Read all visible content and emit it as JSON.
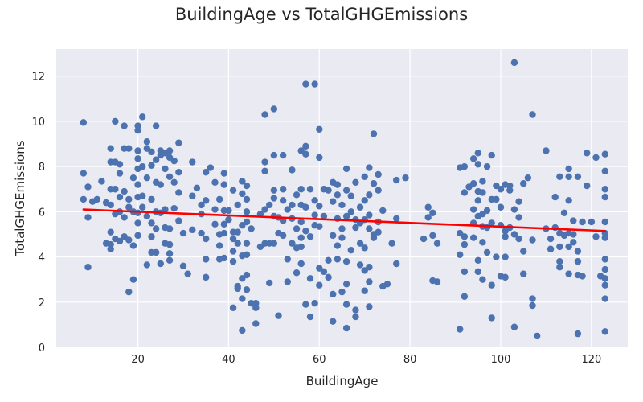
{
  "chart_data": {
    "type": "scatter",
    "title": "BuildingAge vs TotalGHGEmissions",
    "xlabel": "BuildingAge",
    "ylabel": "TotalGHGEmissions",
    "xlim": [
      2,
      128
    ],
    "ylim": [
      0,
      13.2
    ],
    "xticks": [
      20,
      40,
      60,
      80,
      100,
      120
    ],
    "yticks": [
      0,
      2,
      4,
      6,
      8,
      10,
      12
    ],
    "grid": true,
    "background_color": "#eaeaf2",
    "point_color": "#4c72b0",
    "trend_color": "#ff0000",
    "trend_line": {
      "x": [
        8,
        123
      ],
      "y": [
        6.1,
        5.15
      ]
    },
    "points": [
      [
        8,
        9.95
      ],
      [
        8,
        7.7
      ],
      [
        8,
        6.55
      ],
      [
        9,
        7.1
      ],
      [
        9,
        5.75
      ],
      [
        9,
        3.55
      ],
      [
        10,
        6.45
      ],
      [
        11,
        6.55
      ],
      [
        12,
        7.35
      ],
      [
        13,
        6.4
      ],
      [
        13,
        4.6
      ],
      [
        14,
        8.8
      ],
      [
        14,
        8.2
      ],
      [
        14,
        7.0
      ],
      [
        14,
        6.3
      ],
      [
        14,
        5.1
      ],
      [
        14,
        4.55
      ],
      [
        14,
        4.35
      ],
      [
        15,
        10.0
      ],
      [
        15,
        8.2
      ],
      [
        15,
        7.0
      ],
      [
        15,
        5.9
      ],
      [
        15,
        4.8
      ],
      [
        16,
        8.1
      ],
      [
        16,
        7.7
      ],
      [
        16,
        6.65
      ],
      [
        16,
        6.0
      ],
      [
        16,
        4.7
      ],
      [
        17,
        9.8
      ],
      [
        17,
        8.8
      ],
      [
        17,
        6.9
      ],
      [
        17,
        5.75
      ],
      [
        17,
        4.9
      ],
      [
        18,
        8.8
      ],
      [
        18,
        6.55
      ],
      [
        18,
        6.2
      ],
      [
        18,
        4.75
      ],
      [
        18,
        2.45
      ],
      [
        19,
        7.5
      ],
      [
        19,
        6.0
      ],
      [
        19,
        4.5
      ],
      [
        19,
        3.0
      ],
      [
        20,
        9.8
      ],
      [
        20,
        9.6
      ],
      [
        20,
        8.7
      ],
      [
        20,
        8.35
      ],
      [
        20,
        7.9
      ],
      [
        20,
        7.2
      ],
      [
        20,
        6.65
      ],
      [
        20,
        5.95
      ],
      [
        20,
        5.5
      ],
      [
        20,
        4.95
      ],
      [
        21,
        10.2
      ],
      [
        21,
        8.0
      ],
      [
        21,
        6.7
      ],
      [
        21,
        6.2
      ],
      [
        22,
        9.1
      ],
      [
        22,
        8.8
      ],
      [
        22,
        7.5
      ],
      [
        22,
        5.8
      ],
      [
        22,
        3.65
      ],
      [
        23,
        8.65
      ],
      [
        23,
        8.05
      ],
      [
        23,
        6.55
      ],
      [
        23,
        5.5
      ],
      [
        23,
        4.9
      ],
      [
        23,
        4.2
      ],
      [
        24,
        9.8
      ],
      [
        24,
        8.3
      ],
      [
        24,
        7.3
      ],
      [
        24,
        6.0
      ],
      [
        24,
        5.25
      ],
      [
        24,
        4.2
      ],
      [
        25,
        8.7
      ],
      [
        25,
        8.5
      ],
      [
        25,
        7.2
      ],
      [
        25,
        5.95
      ],
      [
        25,
        3.7
      ],
      [
        26,
        8.6
      ],
      [
        26,
        7.9
      ],
      [
        26,
        6.1
      ],
      [
        26,
        5.3
      ],
      [
        26,
        4.6
      ],
      [
        27,
        8.7
      ],
      [
        27,
        8.4
      ],
      [
        27,
        7.55
      ],
      [
        27,
        5.25
      ],
      [
        27,
        4.55
      ],
      [
        27,
        4.15
      ],
      [
        27,
        3.85
      ],
      [
        28,
        8.25
      ],
      [
        28,
        7.3
      ],
      [
        28,
        6.15
      ],
      [
        29,
        9.05
      ],
      [
        29,
        7.75
      ],
      [
        29,
        6.85
      ],
      [
        29,
        5.6
      ],
      [
        30,
        5.05
      ],
      [
        30,
        3.6
      ],
      [
        31,
        3.25
      ],
      [
        32,
        8.2
      ],
      [
        32,
        6.7
      ],
      [
        32,
        5.2
      ],
      [
        33,
        7.05
      ],
      [
        34,
        6.3
      ],
      [
        34,
        5.9
      ],
      [
        34,
        5.05
      ],
      [
        35,
        7.75
      ],
      [
        35,
        6.5
      ],
      [
        35,
        4.8
      ],
      [
        35,
        3.9
      ],
      [
        35,
        3.1
      ],
      [
        36,
        7.95
      ],
      [
        37,
        7.3
      ],
      [
        37,
        6.1
      ],
      [
        37,
        5.45
      ],
      [
        38,
        6.55
      ],
      [
        38,
        5.0
      ],
      [
        38,
        4.5
      ],
      [
        38,
        3.9
      ],
      [
        39,
        7.7
      ],
      [
        39,
        7.2
      ],
      [
        39,
        6.05
      ],
      [
        39,
        5.45
      ],
      [
        39,
        5.05
      ],
      [
        39,
        3.95
      ],
      [
        40,
        6.05
      ],
      [
        40,
        5.65
      ],
      [
        41,
        6.95
      ],
      [
        41,
        5.1
      ],
      [
        41,
        4.8
      ],
      [
        41,
        4.25
      ],
      [
        41,
        3.8
      ],
      [
        41,
        1.75
      ],
      [
        42,
        6.3
      ],
      [
        42,
        5.1
      ],
      [
        42,
        4.6
      ],
      [
        42,
        2.7
      ],
      [
        42,
        2.6
      ],
      [
        43,
        7.35
      ],
      [
        43,
        6.8
      ],
      [
        43,
        5.4
      ],
      [
        43,
        4.05
      ],
      [
        43,
        3.05
      ],
      [
        43,
        2.15
      ],
      [
        43,
        0.75
      ],
      [
        44,
        7.15
      ],
      [
        44,
        6.55
      ],
      [
        44,
        6.0
      ],
      [
        44,
        5.55
      ],
      [
        44,
        4.6
      ],
      [
        44,
        4.1
      ],
      [
        44,
        3.2
      ],
      [
        44,
        2.55
      ],
      [
        45,
        5.25
      ],
      [
        45,
        1.95
      ],
      [
        46,
        1.05
      ],
      [
        46,
        1.75
      ],
      [
        46,
        1.95
      ],
      [
        47,
        5.9
      ],
      [
        47,
        4.45
      ],
      [
        48,
        10.3
      ],
      [
        48,
        8.2
      ],
      [
        48,
        7.8
      ],
      [
        48,
        6.1
      ],
      [
        48,
        4.6
      ],
      [
        49,
        6.3
      ],
      [
        49,
        4.6
      ],
      [
        49,
        2.85
      ],
      [
        50,
        10.55
      ],
      [
        50,
        8.5
      ],
      [
        50,
        6.95
      ],
      [
        50,
        6.6
      ],
      [
        50,
        5.8
      ],
      [
        50,
        4.6
      ],
      [
        51,
        5.75
      ],
      [
        51,
        5.05
      ],
      [
        51,
        1.4
      ],
      [
        52,
        8.5
      ],
      [
        52,
        7.0
      ],
      [
        52,
        6.5
      ],
      [
        52,
        5.6
      ],
      [
        52,
        4.95
      ],
      [
        53,
        6.1
      ],
      [
        53,
        3.9
      ],
      [
        53,
        2.9
      ],
      [
        54,
        7.85
      ],
      [
        54,
        6.3
      ],
      [
        54,
        5.7
      ],
      [
        54,
        4.6
      ],
      [
        55,
        6.75
      ],
      [
        55,
        5.25
      ],
      [
        55,
        4.4
      ],
      [
        55,
        3.3
      ],
      [
        56,
        8.7
      ],
      [
        56,
        7.0
      ],
      [
        56,
        6.3
      ],
      [
        56,
        5.55
      ],
      [
        56,
        4.85
      ],
      [
        56,
        4.45
      ],
      [
        56,
        3.7
      ],
      [
        57,
        11.65
      ],
      [
        57,
        8.9
      ],
      [
        57,
        8.55
      ],
      [
        57,
        6.2
      ],
      [
        57,
        5.15
      ],
      [
        57,
        1.9
      ],
      [
        58,
        7.0
      ],
      [
        58,
        4.9
      ],
      [
        58,
        3.05
      ],
      [
        58,
        1.35
      ],
      [
        59,
        11.65
      ],
      [
        59,
        6.5
      ],
      [
        59,
        5.85
      ],
      [
        59,
        5.4
      ],
      [
        59,
        1.95
      ],
      [
        60,
        9.65
      ],
      [
        60,
        8.4
      ],
      [
        60,
        6.25
      ],
      [
        60,
        5.35
      ],
      [
        60,
        3.5
      ],
      [
        60,
        2.75
      ],
      [
        61,
        7.0
      ],
      [
        61,
        5.8
      ],
      [
        61,
        3.35
      ],
      [
        62,
        6.95
      ],
      [
        62,
        3.85
      ],
      [
        62,
        3.1
      ],
      [
        63,
        7.3
      ],
      [
        63,
        6.45
      ],
      [
        63,
        4.95
      ],
      [
        63,
        2.35
      ],
      [
        63,
        1.15
      ],
      [
        64,
        7.2
      ],
      [
        64,
        6.75
      ],
      [
        64,
        5.7
      ],
      [
        64,
        4.5
      ],
      [
        64,
        3.9
      ],
      [
        65,
        6.3
      ],
      [
        65,
        5.25
      ],
      [
        65,
        4.85
      ],
      [
        65,
        2.45
      ],
      [
        66,
        7.9
      ],
      [
        66,
        6.95
      ],
      [
        66,
        5.8
      ],
      [
        66,
        3.8
      ],
      [
        66,
        2.8
      ],
      [
        66,
        1.9
      ],
      [
        66,
        0.85
      ],
      [
        67,
        6.7
      ],
      [
        67,
        6.0
      ],
      [
        67,
        4.3
      ],
      [
        68,
        7.3
      ],
      [
        68,
        5.65
      ],
      [
        68,
        5.3
      ],
      [
        68,
        1.65
      ],
      [
        68,
        1.35
      ],
      [
        69,
        6.2
      ],
      [
        69,
        5.5
      ],
      [
        69,
        4.6
      ],
      [
        69,
        3.65
      ],
      [
        70,
        7.55
      ],
      [
        70,
        6.5
      ],
      [
        70,
        5.65
      ],
      [
        70,
        4.4
      ],
      [
        70,
        3.4
      ],
      [
        70,
        2.5
      ],
      [
        71,
        7.95
      ],
      [
        71,
        6.75
      ],
      [
        71,
        5.85
      ],
      [
        71,
        5.25
      ],
      [
        71,
        3.55
      ],
      [
        71,
        2.9
      ],
      [
        71,
        1.8
      ],
      [
        72,
        9.45
      ],
      [
        72,
        7.25
      ],
      [
        72,
        5.0
      ],
      [
        72,
        4.85
      ],
      [
        73,
        7.65
      ],
      [
        73,
        6.95
      ],
      [
        73,
        5.55
      ],
      [
        73,
        5.1
      ],
      [
        74,
        6.05
      ],
      [
        74,
        2.7
      ],
      [
        75,
        2.8
      ],
      [
        76,
        4.6
      ],
      [
        77,
        7.4
      ],
      [
        77,
        5.7
      ],
      [
        77,
        3.7
      ],
      [
        79,
        7.5
      ],
      [
        83,
        4.8
      ],
      [
        84,
        6.2
      ],
      [
        84,
        5.75
      ],
      [
        85,
        5.95
      ],
      [
        85,
        4.95
      ],
      [
        85,
        2.95
      ],
      [
        86,
        4.6
      ],
      [
        86,
        2.9
      ],
      [
        91,
        7.95
      ],
      [
        91,
        5.05
      ],
      [
        91,
        4.1
      ],
      [
        91,
        0.8
      ],
      [
        92,
        8.0
      ],
      [
        92,
        6.85
      ],
      [
        92,
        4.9
      ],
      [
        92,
        4.55
      ],
      [
        92,
        3.35
      ],
      [
        92,
        2.25
      ],
      [
        93,
        7.1
      ],
      [
        94,
        8.35
      ],
      [
        94,
        7.25
      ],
      [
        94,
        6.1
      ],
      [
        94,
        5.5
      ],
      [
        94,
        4.85
      ],
      [
        95,
        8.6
      ],
      [
        95,
        8.1
      ],
      [
        95,
        6.9
      ],
      [
        95,
        6.5
      ],
      [
        95,
        5.8
      ],
      [
        95,
        3.85
      ],
      [
        95,
        3.35
      ],
      [
        96,
        7.35
      ],
      [
        96,
        6.85
      ],
      [
        96,
        5.9
      ],
      [
        96,
        5.35
      ],
      [
        96,
        4.65
      ],
      [
        96,
        3.0
      ],
      [
        97,
        8.0
      ],
      [
        97,
        6.05
      ],
      [
        97,
        5.3
      ],
      [
        97,
        4.2
      ],
      [
        98,
        8.5
      ],
      [
        98,
        6.55
      ],
      [
        98,
        5.5
      ],
      [
        98,
        2.75
      ],
      [
        98,
        1.3
      ],
      [
        99,
        7.15
      ],
      [
        99,
        6.55
      ],
      [
        99,
        4.0
      ],
      [
        100,
        7.0
      ],
      [
        100,
        6.2
      ],
      [
        100,
        5.4
      ],
      [
        100,
        3.15
      ],
      [
        101,
        7.2
      ],
      [
        101,
        5.15
      ],
      [
        101,
        4.9
      ],
      [
        101,
        4.0
      ],
      [
        101,
        3.1
      ],
      [
        102,
        7.15
      ],
      [
        102,
        6.95
      ],
      [
        102,
        5.3
      ],
      [
        103,
        12.6
      ],
      [
        103,
        6.1
      ],
      [
        103,
        5.0
      ],
      [
        103,
        0.9
      ],
      [
        104,
        6.45
      ],
      [
        104,
        5.75
      ],
      [
        104,
        4.8
      ],
      [
        105,
        7.25
      ],
      [
        105,
        4.25
      ],
      [
        105,
        3.25
      ],
      [
        106,
        7.5
      ],
      [
        107,
        10.3
      ],
      [
        107,
        4.75
      ],
      [
        107,
        2.15
      ],
      [
        107,
        1.85
      ],
      [
        108,
        0.5
      ],
      [
        110,
        8.7
      ],
      [
        110,
        5.25
      ],
      [
        111,
        4.8
      ],
      [
        111,
        4.35
      ],
      [
        112,
        6.65
      ],
      [
        112,
        5.3
      ],
      [
        113,
        7.55
      ],
      [
        113,
        5.05
      ],
      [
        113,
        4.45
      ],
      [
        113,
        3.8
      ],
      [
        113,
        3.55
      ],
      [
        114,
        5.95
      ],
      [
        114,
        4.95
      ],
      [
        115,
        7.9
      ],
      [
        115,
        7.55
      ],
      [
        115,
        6.5
      ],
      [
        115,
        5.05
      ],
      [
        115,
        4.45
      ],
      [
        115,
        3.25
      ],
      [
        116,
        5.6
      ],
      [
        116,
        5.0
      ],
      [
        116,
        4.65
      ],
      [
        117,
        7.55
      ],
      [
        117,
        4.25
      ],
      [
        117,
        3.8
      ],
      [
        117,
        3.2
      ],
      [
        117,
        0.6
      ],
      [
        118,
        5.55
      ],
      [
        118,
        3.15
      ],
      [
        119,
        8.6
      ],
      [
        119,
        7.15
      ],
      [
        120,
        5.55
      ],
      [
        121,
        8.4
      ],
      [
        121,
        4.9
      ],
      [
        122,
        3.15
      ],
      [
        123,
        8.55
      ],
      [
        123,
        7.8
      ],
      [
        123,
        7.0
      ],
      [
        123,
        6.65
      ],
      [
        123,
        5.55
      ],
      [
        123,
        5.05
      ],
      [
        123,
        4.85
      ],
      [
        123,
        3.9
      ],
      [
        123,
        3.45
      ],
      [
        123,
        3.05
      ],
      [
        123,
        2.75
      ],
      [
        123,
        2.15
      ],
      [
        123,
        0.7
      ]
    ]
  }
}
